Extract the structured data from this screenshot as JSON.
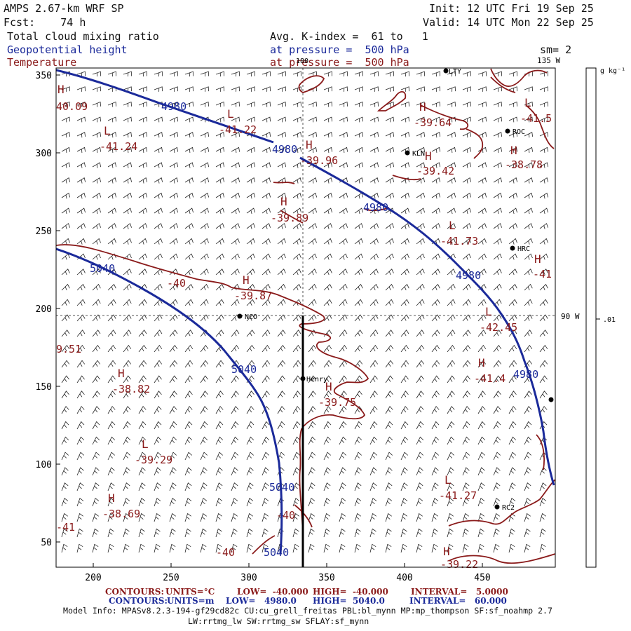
{
  "header": {
    "model": "AMPS 2.67-km WRF SP",
    "forecast": "Fcst:    74 h",
    "init": "Init: 12 UTC Fri 19 Sep 25",
    "valid": "Valid: 14 UTC Mon 22 Sep 25",
    "field1": "Total cloud mixing ratio",
    "field2": "Geopotential height",
    "field3": "Temperature",
    "avg": "Avg. K-index =  61 to   1",
    "press1": "at pressure =  500 hPa",
    "press2": "at pressure =  500 hPa",
    "sm": "sm= 2"
  },
  "colors": {
    "height": "#1b2a9a",
    "temperature": "#8a1a1a",
    "text": "#111111"
  },
  "map": {
    "x_ticks": [
      "200",
      "250",
      "300",
      "350",
      "400",
      "450"
    ],
    "y_ticks": [
      "350",
      "300",
      "250",
      "200",
      "150",
      "100",
      "50"
    ],
    "lon_labels": {
      "top": "180",
      "top_right": "135 W",
      "right": "90 W"
    },
    "stations": [
      "LTY",
      "ROC",
      "KLN",
      "HRC",
      "NCO",
      "Henry",
      "RC2"
    ],
    "height_labels": [
      "4980",
      "4980",
      "4980",
      "4980",
      "4980",
      "5040",
      "5040",
      "5040",
      "5040"
    ],
    "temp_labels": [
      "40.09",
      "-41.22",
      "-41.24",
      "-39.96",
      "-39.64",
      "-41.5",
      "-39.42",
      "-38.78",
      "-39.89",
      "-41.73",
      "-41",
      "-40",
      "-39.87",
      "-42.45",
      "-41.4",
      "9.51",
      "-38.82",
      "-39.75",
      "-39.29",
      "-41.27",
      "-38.69",
      "-41",
      "-40",
      "-40",
      "-39.22"
    ],
    "hl_letters": [
      "H",
      "L",
      "L",
      "H",
      "H",
      "L",
      "H",
      "H",
      "H",
      "L",
      "H",
      "H",
      "L",
      "H",
      "H",
      "H",
      "L",
      "L",
      "H",
      "H"
    ]
  },
  "colorbar": {
    "unit": "g kg⁻¹",
    "value": ".01"
  },
  "footer": {
    "c1_label": "CONTOURS:",
    "c1_units": "UNITS=°C",
    "c1_low": "LOW=  -40.000",
    "c1_high": "HIGH=  -40.000",
    "c1_int": "INTERVAL=   5.0000",
    "c2_label": "CONTOURS:",
    "c2_units": "UNITS=m",
    "c2_low": "LOW=   4980.0",
    "c2_high": "HIGH=  5040.0",
    "c2_int": "INTERVAL=   60.000",
    "info1": "Model Info: MPASv8.2.3-194-gf29cd82c CU:cu_grell_freitas PBL:bl_mynn MP:mp_thompson SF:sf_noahmp 2.7",
    "info2": "LW:rrtmg_lw SW:rrtmg_sw SFLAY:sf_mynn"
  }
}
